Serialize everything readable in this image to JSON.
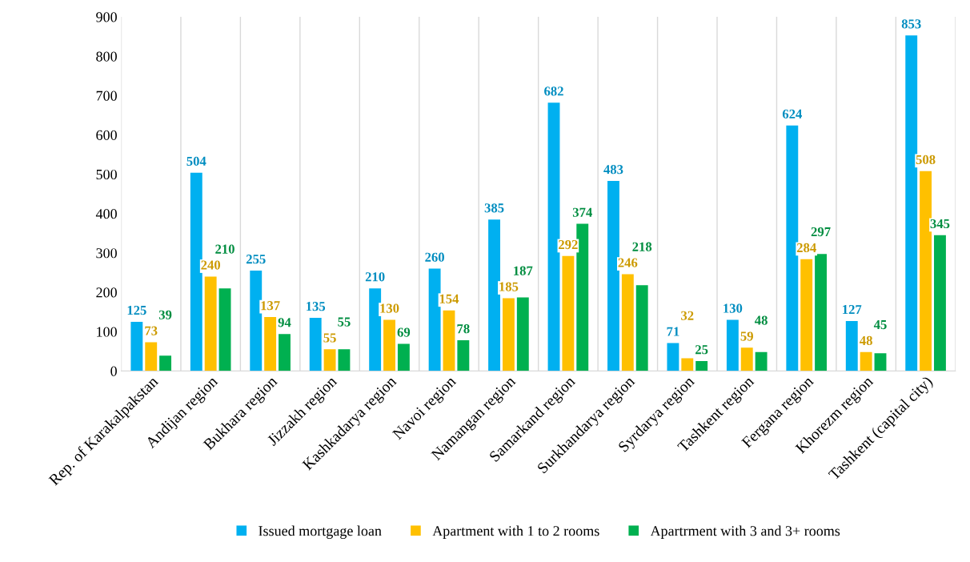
{
  "chart_data": {
    "type": "bar",
    "categories": [
      "Rep. of Karakalpakstan",
      "Andijan region",
      "Bukhara region",
      "Jizzakh region",
      "Kashkadarya region",
      "Navoi region",
      "Namangan region",
      "Samarkand region",
      "Surkhandarya region",
      "Syrdarya region",
      "Tashkent region",
      "Fergana region",
      "Khorezm region",
      "Tashkent (capital city)"
    ],
    "series": [
      {
        "name": "Issued mortgage loan",
        "color": "#00b0f0",
        "values": [
          125,
          504,
          255,
          135,
          210,
          260,
          385,
          682,
          483,
          71,
          130,
          624,
          127,
          853
        ]
      },
      {
        "name": "Apartment with 1 to 2 rooms",
        "color": "#ffc000",
        "values": [
          73,
          240,
          137,
          55,
          130,
          154,
          185,
          292,
          246,
          32,
          59,
          284,
          48,
          508
        ]
      },
      {
        "name": "Apartrment with 3 and 3+ rooms",
        "color": "#00b050",
        "values": [
          39,
          210,
          94,
          55,
          69,
          78,
          187,
          374,
          218,
          25,
          48,
          297,
          45,
          345
        ]
      }
    ],
    "ylim": [
      0,
      900
    ],
    "yticks": [
      0,
      100,
      200,
      300,
      400,
      500,
      600,
      700,
      800,
      900
    ],
    "grid": "x",
    "legend": "bottom",
    "data_labels": true
  }
}
